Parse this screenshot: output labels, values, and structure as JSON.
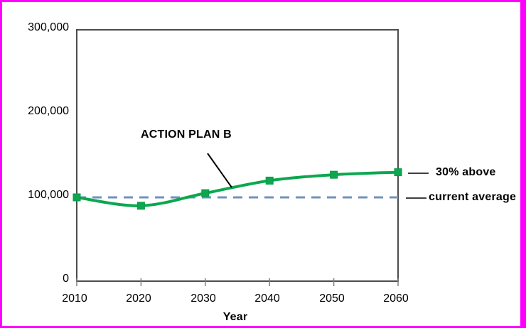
{
  "chart_data": {
    "type": "line",
    "title": "",
    "xlabel": "Year",
    "ylabel": "",
    "xlim": [
      2010,
      2060
    ],
    "ylim": [
      0,
      300000
    ],
    "grid": false,
    "legend": "none",
    "x": [
      2010,
      2020,
      2030,
      2040,
      2050,
      2060
    ],
    "xtick_labels": [
      "2010",
      "2020",
      "2030",
      "2040",
      "2050",
      "2060"
    ],
    "yticks": [
      0,
      100000,
      200000,
      300000
    ],
    "ytick_labels": [
      "0",
      "100,000",
      "200,000",
      "300,000"
    ],
    "series": [
      {
        "name": "ACTION PLAN B",
        "marker": "square",
        "color": "#0ca74f",
        "values": [
          100000,
          90000,
          105000,
          120000,
          127000,
          130000
        ]
      }
    ],
    "reference_line": {
      "value": 100000,
      "style": "dashed",
      "color": "#7092be"
    },
    "annotations": [
      {
        "text": "ACTION PLAN B"
      },
      {
        "text": "30% above"
      },
      {
        "text": "current average"
      }
    ]
  },
  "colors": {
    "page_border": "#ff00ff",
    "plot_frame": "#4d4d4d",
    "tick": "#808080",
    "leader_line": "#000000"
  }
}
